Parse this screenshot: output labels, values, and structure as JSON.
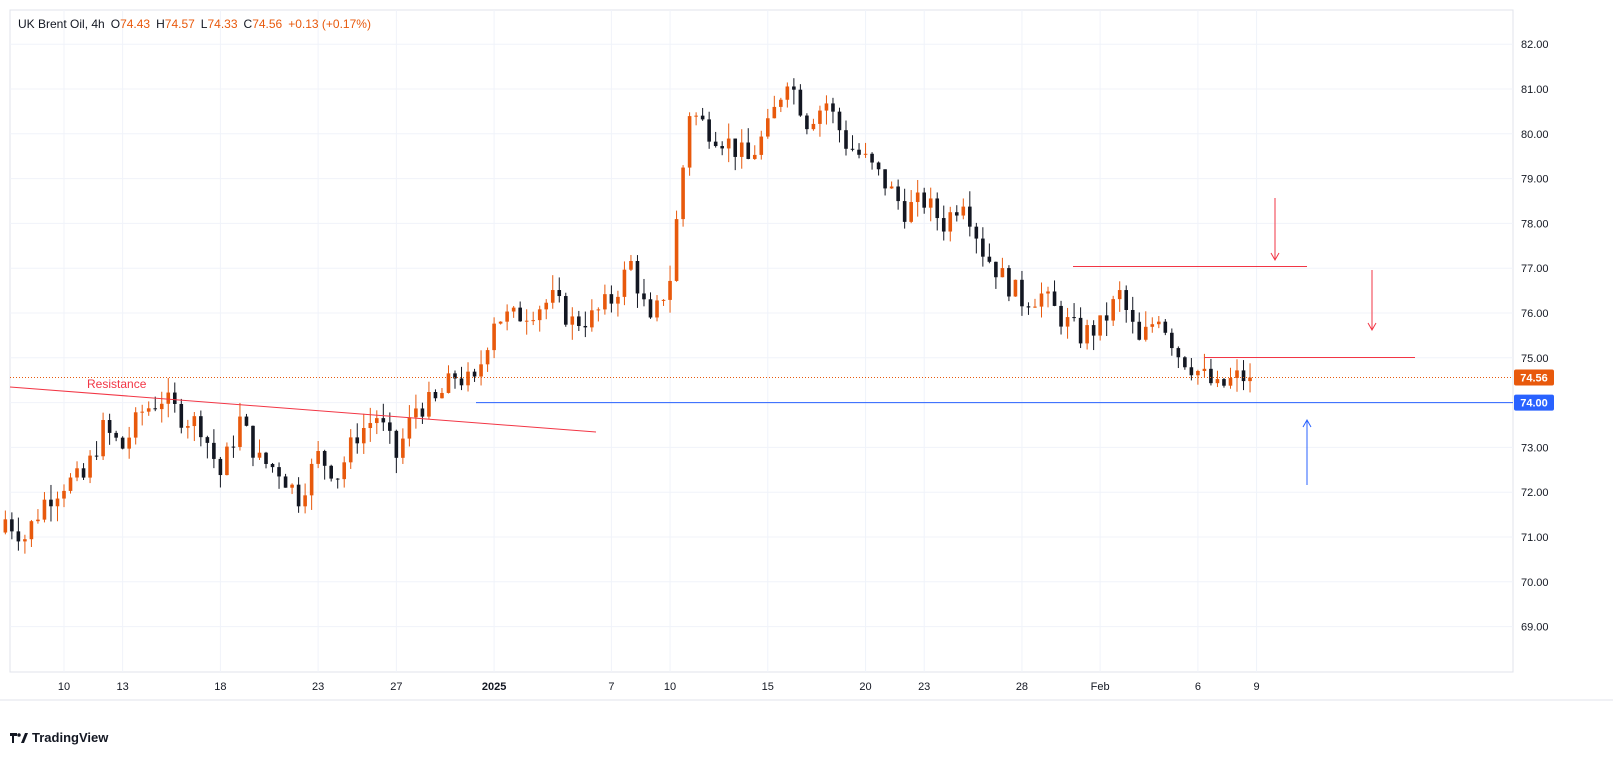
{
  "header": {
    "symbol": "UK Brent Oil",
    "interval": "4h",
    "open_label": "O",
    "open": "74.43",
    "high_label": "H",
    "high": "74.57",
    "low_label": "L",
    "low": "74.33",
    "close_label": "C",
    "close": "74.56",
    "change": "+0.13 (+0.17%)"
  },
  "brand": "TradingView",
  "colors": {
    "up": "#e8590c",
    "down": "#131722",
    "resistance": "#f23645",
    "support": "#2962ff",
    "last_price_tag": "#e8590c",
    "grid": "#f0f3fa"
  },
  "chart_data": {
    "type": "candlestick",
    "y_axis": {
      "min": 68.0,
      "max": 82.5,
      "ticks": [
        "69.00",
        "70.00",
        "71.00",
        "72.00",
        "73.00",
        "74.00",
        "75.00",
        "76.00",
        "77.00",
        "78.00",
        "79.00",
        "80.00",
        "81.00",
        "82.00"
      ]
    },
    "x_axis": {
      "ticks": [
        {
          "label": "10",
          "day": 10
        },
        {
          "label": "13",
          "day": 13
        },
        {
          "label": "18",
          "day": 18
        },
        {
          "label": "23",
          "day": 23
        },
        {
          "label": "27",
          "day": 27
        },
        {
          "label": "2025",
          "day": 32,
          "bold": true
        },
        {
          "label": "7",
          "day": 38
        },
        {
          "label": "10",
          "day": 41
        },
        {
          "label": "15",
          "day": 46
        },
        {
          "label": "20",
          "day": 51
        },
        {
          "label": "23",
          "day": 54
        },
        {
          "label": "28",
          "day": 59
        },
        {
          "label": "Feb",
          "day": 63
        },
        {
          "label": "6",
          "day": 68
        },
        {
          "label": "9",
          "day": 71
        }
      ]
    },
    "last_price": "74.56",
    "support_level": "74.00",
    "annotation": "Resistance",
    "daily_closes": [
      [
        7,
        71.4
      ],
      [
        8,
        71.0
      ],
      [
        9,
        71.8
      ],
      [
        10,
        72.2
      ],
      [
        11,
        72.3
      ],
      [
        12,
        73.4
      ],
      [
        13,
        73.0
      ],
      [
        14,
        73.8
      ],
      [
        15,
        74.1
      ],
      [
        16,
        73.7
      ],
      [
        17,
        73.5
      ],
      [
        18,
        72.4
      ],
      [
        19,
        73.6
      ],
      [
        20,
        72.7
      ],
      [
        21,
        72.5
      ],
      [
        22,
        71.9
      ],
      [
        23,
        72.8
      ],
      [
        24,
        72.4
      ],
      [
        25,
        73.3
      ],
      [
        26,
        73.7
      ],
      [
        27,
        72.8
      ],
      [
        28,
        73.9
      ],
      [
        29,
        74.0
      ],
      [
        30,
        74.6
      ],
      [
        31,
        74.4
      ],
      [
        32,
        75.9
      ],
      [
        33,
        75.9
      ],
      [
        34,
        76.1
      ],
      [
        35,
        76.3
      ],
      [
        36,
        75.8
      ],
      [
        37,
        75.9
      ],
      [
        38,
        76.3
      ],
      [
        39,
        77.1
      ],
      [
        40,
        75.7
      ],
      [
        41,
        76.8
      ],
      [
        42,
        80.5
      ],
      [
        43,
        80.1
      ],
      [
        44,
        79.8
      ],
      [
        45,
        79.4
      ],
      [
        46,
        80.1
      ],
      [
        47,
        81.3
      ],
      [
        48,
        80.3
      ],
      [
        49,
        80.7
      ],
      [
        50,
        79.8
      ],
      [
        51,
        79.4
      ],
      [
        52,
        78.9
      ],
      [
        53,
        78.3
      ],
      [
        54,
        78.5
      ],
      [
        55,
        78.0
      ],
      [
        56,
        78.6
      ],
      [
        57,
        77.4
      ],
      [
        58,
        76.8
      ],
      [
        59,
        76.3
      ],
      [
        60,
        76.4
      ],
      [
        61,
        75.9
      ],
      [
        62,
        75.5
      ],
      [
        63,
        75.7
      ],
      [
        64,
        76.4
      ],
      [
        65,
        75.3
      ],
      [
        66,
        76.0
      ],
      [
        67,
        75.1
      ],
      [
        68,
        74.7
      ],
      [
        69,
        74.3
      ],
      [
        70,
        74.56
      ]
    ]
  }
}
